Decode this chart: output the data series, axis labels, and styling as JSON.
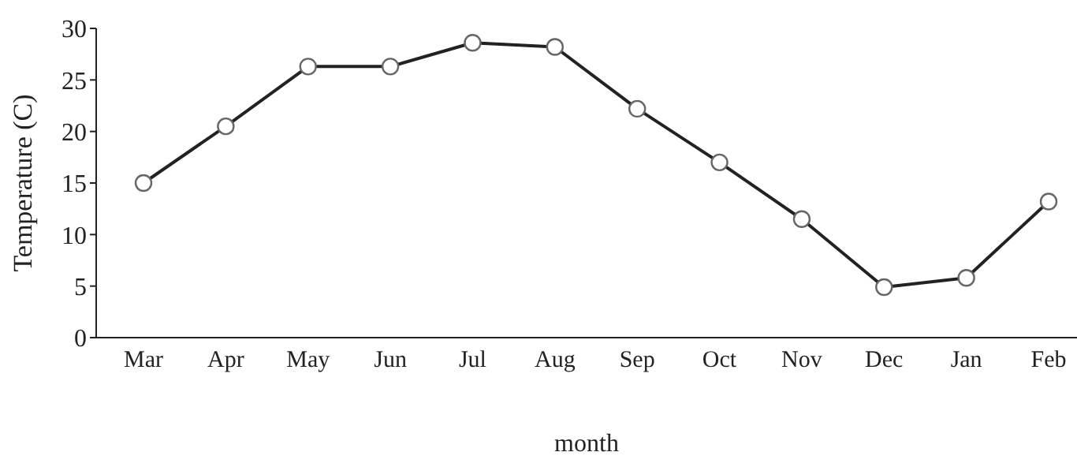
{
  "chart_data": {
    "type": "line",
    "xlabel": "month",
    "ylabel": "Temperature (C)",
    "categories": [
      "Mar",
      "Apr",
      "May",
      "Jun",
      "Jul",
      "Aug",
      "Sep",
      "Oct",
      "Nov",
      "Dec",
      "Jan",
      "Feb"
    ],
    "series": [
      {
        "color": "#222222",
        "values": [
          15,
          20.5,
          26.3,
          26.3,
          28.6,
          28.2,
          22.2,
          17,
          11.5,
          4.9,
          5.8,
          13.2
        ]
      }
    ],
    "ylim": [
      0,
      30
    ],
    "yticks": [
      0,
      5,
      10,
      15,
      20,
      25,
      30
    ],
    "grid": false,
    "legend": false,
    "marker": "circle",
    "line_style": "solid"
  }
}
